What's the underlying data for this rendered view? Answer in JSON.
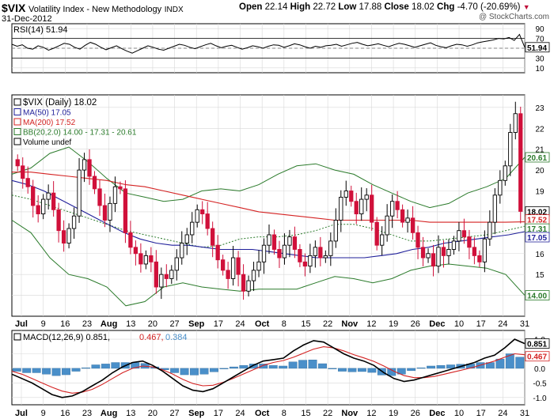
{
  "header": {
    "symbol": "$VIX",
    "name": "Volatility Index - New Methodology",
    "exchange": "INDX",
    "date": "31-Dec-2012",
    "watermark": "@ StockCharts.com",
    "open_label": "Open",
    "open": "22.14",
    "high_label": "High",
    "high": "22.72",
    "low_label": "Low",
    "low": "17.88",
    "close_label": "Close",
    "close": "18.02",
    "chg_label": "Chg",
    "chg": "-4.70 (-20.69%)",
    "chg_arrow": "▼"
  },
  "colors": {
    "up": "#000000",
    "down": "#d0103a",
    "ma50": "#1f1f9a",
    "ma200": "#d42222",
    "bb": "#2a7a2a",
    "macd": "#000000",
    "signal": "#d42222",
    "hist": "#4a8fc9",
    "grid": "#d8d8d8"
  },
  "chart_data": [
    {
      "type": "line",
      "title": "RSI(14) 51.94",
      "ylim": [
        0,
        100
      ],
      "y_ticks": [
        "90",
        "70",
        "50",
        "30",
        "10"
      ],
      "reference_lines": [
        70,
        30
      ],
      "last_value": "51.94",
      "values": [
        58,
        54,
        57,
        50,
        48,
        55,
        52,
        46,
        50,
        55,
        60,
        58,
        52,
        48,
        56,
        62,
        58,
        52,
        47,
        51,
        55,
        49,
        44,
        40,
        45,
        50,
        55,
        52,
        48,
        46,
        50,
        54,
        58,
        56,
        52,
        49,
        53,
        57,
        60,
        55,
        51,
        54,
        56,
        52,
        48,
        51,
        55,
        53,
        50,
        54,
        57,
        56,
        52,
        55,
        59,
        57,
        53,
        50,
        54,
        52,
        55,
        56,
        58,
        54,
        57,
        60,
        62,
        58,
        55,
        57,
        59,
        56,
        53,
        57,
        60,
        58,
        55,
        52,
        55,
        58,
        61,
        56,
        53,
        51,
        55,
        58,
        57,
        54,
        57,
        61,
        63,
        65,
        67,
        70,
        69,
        72,
        66,
        78,
        52
      ]
    },
    {
      "type": "candlestick",
      "title": "$VIX (Daily) 18.02",
      "y_ticks": [
        "23",
        "22",
        "21",
        "20",
        "19",
        "18",
        "17",
        "16",
        "15",
        "14"
      ],
      "ylim": [
        13,
        23.6
      ],
      "x_ticks": [
        "Jul",
        "9",
        "16",
        "23",
        "Aug",
        "13",
        "20",
        "27",
        "Sep",
        "17",
        "24",
        "Oct",
        "8",
        "15",
        "22",
        "Nov",
        "12",
        "19",
        "26",
        "Dec",
        "10",
        "17",
        "24",
        "31"
      ],
      "legend": [
        {
          "label": "$VIX (Daily) 18.02"
        },
        {
          "label": "MA(50) 17.05"
        },
        {
          "label": "MA(200) 17.52"
        },
        {
          "label": "BB(20,2.0) 14.00 - 17.31 - 20.61"
        },
        {
          "label": "Volume undef"
        }
      ],
      "last_values": {
        "close": "18.02",
        "bb_upper": "20.61",
        "ma200": "17.52",
        "bb_mid": "17.31",
        "ma50": "17.05",
        "bb_lower": "14.00"
      },
      "close": [
        20.2,
        19.6,
        19.2,
        18.3,
        17.9,
        18.6,
        18.9,
        18.1,
        17.1,
        16.5,
        17.2,
        17.8,
        20.0,
        20.5,
        19.7,
        19.1,
        18.3,
        17.6,
        18.4,
        19.2,
        19.1,
        17.0,
        16.3,
        16.0,
        15.5,
        15.9,
        15.6,
        14.4,
        15.0,
        14.8,
        15.2,
        15.8,
        16.5,
        16.9,
        17.5,
        18.1,
        17.9,
        17.2,
        16.4,
        15.7,
        15.2,
        14.8,
        15.8,
        15.0,
        14.2,
        14.7,
        15.2,
        15.6,
        16.4,
        16.9,
        16.2,
        15.8,
        16.4,
        16.8,
        16.2,
        15.6,
        15.4,
        15.9,
        16.3,
        15.8,
        15.9,
        16.6,
        17.6,
        18.7,
        19.0,
        18.5,
        17.9,
        18.6,
        18.8,
        17.5,
        16.4,
        16.9,
        17.8,
        18.5,
        18.1,
        17.5,
        17.7,
        17.0,
        16.3,
        15.8,
        16.0,
        15.4,
        16.3,
        15.9,
        16.2,
        16.6,
        17.1,
        16.8,
        16.3,
        15.9,
        15.6,
        16.7,
        17.5,
        18.8,
        19.5,
        20.2,
        21.8,
        22.7,
        18.02
      ],
      "ma50": [
        19.5,
        19.3,
        19.0,
        18.6,
        18.2,
        17.8,
        17.4,
        17.0,
        16.7,
        16.5,
        16.4,
        16.4,
        16.3,
        16.2,
        16.2,
        16.2,
        16.1,
        16.0,
        15.9,
        15.8,
        15.8,
        15.8,
        15.8,
        15.9,
        16.0,
        16.2,
        16.3,
        16.5,
        16.6,
        16.7,
        16.8,
        16.9,
        17.05
      ],
      "ma200": [
        19.9,
        19.9,
        19.8,
        19.7,
        19.6,
        19.5,
        19.3,
        19.2,
        19.0,
        18.8,
        18.6,
        18.4,
        18.2,
        18.0,
        17.9,
        17.8,
        17.7,
        17.6,
        17.6,
        17.6,
        17.6,
        17.6,
        17.5,
        17.5,
        17.5,
        17.5,
        17.5,
        17.52
      ],
      "bb_upper": [
        19.8,
        20.1,
        20.8,
        21.1,
        20.4,
        19.6,
        18.9,
        18.7,
        18.5,
        18.6,
        19.0,
        19.1,
        19.0,
        19.3,
        19.8,
        20.2,
        20.3,
        20.0,
        19.8,
        19.3,
        18.9,
        18.5,
        18.2,
        18.4,
        18.9,
        19.2,
        19.6,
        20.61
      ],
      "bb_mid": [
        18.8,
        18.6,
        18.3,
        18.0,
        17.7,
        17.4,
        17.1,
        16.9,
        16.7,
        16.5,
        16.3,
        16.4,
        16.7,
        16.8,
        16.8,
        16.9,
        17.1,
        17.4,
        17.4,
        17.2,
        16.9,
        16.6,
        16.6,
        16.7,
        16.8,
        16.9,
        17.1,
        17.31
      ],
      "bb_lower": [
        17.6,
        17.0,
        15.8,
        15.0,
        14.8,
        14.4,
        13.5,
        13.7,
        14.4,
        14.6,
        14.4,
        14.3,
        14.2,
        14.3,
        14.3,
        14.3,
        14.6,
        14.9,
        14.8,
        14.6,
        14.8,
        15.2,
        15.4,
        15.5,
        15.4,
        15.3,
        15.0,
        14.0
      ]
    },
    {
      "type": "line",
      "title": "MACD(12,26,9) 0.851, 0.467, 0.384",
      "legend": [
        {
          "label": "MACD(12,26,9) 0.851,"
        },
        {
          "label": "0.467,"
        },
        {
          "label": "0.384"
        }
      ],
      "y_ticks": [
        "1.0",
        "0.5",
        "0.0",
        "-0.5",
        "-1.0"
      ],
      "ylim": [
        -1.25,
        1.3
      ],
      "last_values": {
        "macd": "0.851",
        "signal": "0.467"
      },
      "macd": [
        -0.2,
        -0.35,
        -0.5,
        -0.7,
        -0.9,
        -1.0,
        -0.95,
        -0.8,
        -0.6,
        -0.4,
        -0.15,
        0.05,
        0.2,
        0.25,
        0.1,
        -0.1,
        -0.35,
        -0.6,
        -0.75,
        -0.8,
        -0.7,
        -0.5,
        -0.3,
        -0.1,
        0.1,
        0.25,
        0.3,
        0.35,
        0.6,
        0.8,
        0.95,
        0.9,
        0.7,
        0.5,
        0.35,
        0.25,
        0.1,
        -0.15,
        -0.35,
        -0.45,
        -0.4,
        -0.3,
        -0.2,
        -0.1,
        0.0,
        0.1,
        0.2,
        0.35,
        0.45,
        0.7,
        1.0,
        0.851
      ],
      "signal": [
        -0.1,
        -0.2,
        -0.35,
        -0.5,
        -0.65,
        -0.78,
        -0.85,
        -0.82,
        -0.72,
        -0.55,
        -0.35,
        -0.15,
        0.0,
        0.08,
        0.05,
        -0.05,
        -0.2,
        -0.38,
        -0.52,
        -0.6,
        -0.58,
        -0.48,
        -0.35,
        -0.2,
        -0.05,
        0.1,
        0.2,
        0.27,
        0.38,
        0.52,
        0.66,
        0.74,
        0.7,
        0.6,
        0.47,
        0.36,
        0.24,
        0.08,
        -0.1,
        -0.25,
        -0.32,
        -0.32,
        -0.28,
        -0.2,
        -0.12,
        -0.04,
        0.05,
        0.15,
        0.25,
        0.38,
        0.5,
        0.467
      ],
      "histogram": [
        -0.1,
        -0.15,
        -0.15,
        -0.2,
        -0.25,
        -0.22,
        -0.1,
        0.02,
        0.12,
        0.15,
        0.2,
        0.2,
        0.2,
        0.17,
        0.05,
        -0.05,
        -0.15,
        -0.22,
        -0.23,
        -0.2,
        -0.12,
        -0.02,
        0.05,
        0.1,
        0.15,
        0.15,
        0.1,
        0.08,
        0.22,
        0.28,
        0.29,
        0.16,
        0.0,
        -0.1,
        -0.12,
        -0.11,
        -0.14,
        -0.23,
        -0.25,
        -0.2,
        -0.08,
        0.02,
        0.08,
        0.1,
        0.12,
        0.14,
        0.15,
        0.2,
        0.2,
        0.32,
        0.5,
        0.384
      ]
    }
  ]
}
